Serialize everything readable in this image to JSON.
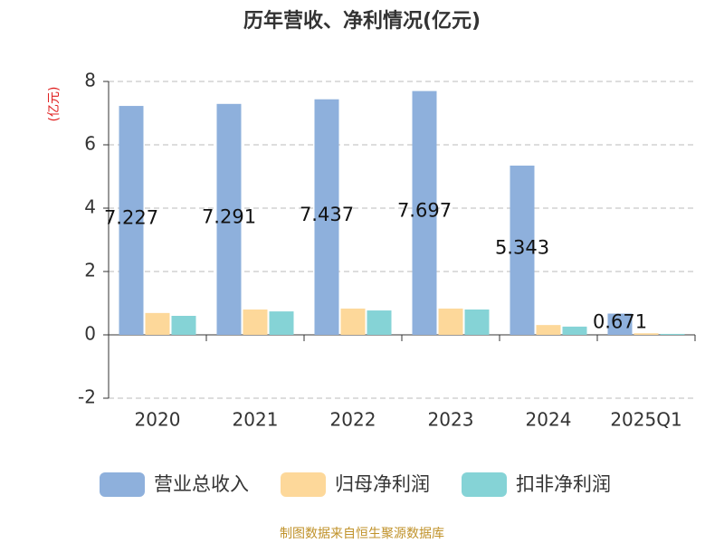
{
  "chart_data": {
    "type": "bar",
    "title": "历年营收、净利情况(亿元)",
    "y_unit": "(亿元)",
    "categories": [
      "2020",
      "2021",
      "2022",
      "2023",
      "2024",
      "2025Q1"
    ],
    "series": [
      {
        "name": "营业总收入",
        "color": "#8eb0dc",
        "values": [
          7.227,
          7.291,
          7.437,
          7.697,
          5.343,
          0.671
        ],
        "data_labels": true
      },
      {
        "name": "归母净利润",
        "color": "#fdd89a",
        "values": [
          0.69,
          0.8,
          0.83,
          0.83,
          0.31,
          0.05
        ]
      },
      {
        "name": "扣非净利润",
        "color": "#85d3d6",
        "values": [
          0.6,
          0.74,
          0.77,
          0.8,
          0.26,
          0.03
        ]
      }
    ],
    "ylim": [
      -2,
      8
    ],
    "yticks": [
      -2,
      0,
      2,
      4,
      6,
      8
    ],
    "grid": true,
    "source": "制图数据来自恒生聚源数据库"
  }
}
